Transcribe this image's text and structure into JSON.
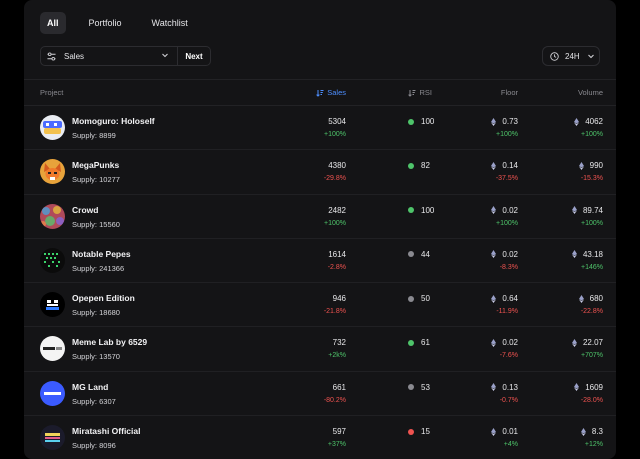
{
  "tabs": [
    {
      "label": "All",
      "active": true
    },
    {
      "label": "Portfolio",
      "active": false
    },
    {
      "label": "Watchlist",
      "active": false
    }
  ],
  "controls": {
    "sort_label": "Sales",
    "next_label": "Next",
    "time_label": "24H"
  },
  "columns": {
    "project": "Project",
    "sales": "Sales",
    "rsi": "RSI",
    "floor": "Floor",
    "volume": "Volume"
  },
  "supply_prefix": "Supply:",
  "colors": {
    "accent": "#4d8eff",
    "positive": "#4ec46a",
    "negative": "#ef5350",
    "rsi_green": "#4ec46a",
    "rsi_gray": "#8a8a90",
    "rsi_red": "#ef5350"
  },
  "rows": [
    {
      "name": "Momoguro: Holoself",
      "supply": "8899",
      "sales": "5304",
      "sales_change": "+100%",
      "rsi": "100",
      "rsi_status": "green",
      "floor": "0.73",
      "floor_change": "+100%",
      "volume": "4062",
      "volume_change": "+100%",
      "avatar_icon": "momoguro-logo-icon"
    },
    {
      "name": "MegaPunks",
      "supply": "10277",
      "sales": "4380",
      "sales_change": "-29.8%",
      "rsi": "82",
      "rsi_status": "green",
      "floor": "0.14",
      "floor_change": "-37.5%",
      "volume": "990",
      "volume_change": "-15.3%",
      "avatar_icon": "megapunks-fox-icon"
    },
    {
      "name": "Crowd",
      "supply": "15560",
      "sales": "2482",
      "sales_change": "+100%",
      "rsi": "100",
      "rsi_status": "green",
      "floor": "0.02",
      "floor_change": "+100%",
      "volume": "89.74",
      "volume_change": "+100%",
      "avatar_icon": "crowd-pattern-icon"
    },
    {
      "name": "Notable Pepes",
      "supply": "241366",
      "sales": "1614",
      "sales_change": "-2.8%",
      "rsi": "44",
      "rsi_status": "gray",
      "floor": "0.02",
      "floor_change": "-8.3%",
      "volume": "43.18",
      "volume_change": "+146%",
      "avatar_icon": "notable-pepes-icon"
    },
    {
      "name": "Opepen Edition",
      "supply": "18680",
      "sales": "946",
      "sales_change": "-21.8%",
      "rsi": "50",
      "rsi_status": "gray",
      "floor": "0.64",
      "floor_change": "-11.9%",
      "volume": "680",
      "volume_change": "-22.8%",
      "avatar_icon": "opepen-icon"
    },
    {
      "name": "Meme Lab by 6529",
      "supply": "13570",
      "sales": "732",
      "sales_change": "+2k%",
      "rsi": "61",
      "rsi_status": "green",
      "floor": "0.02",
      "floor_change": "-7.6%",
      "volume": "22.07",
      "volume_change": "+707%",
      "avatar_icon": "meme-lab-icon"
    },
    {
      "name": "MG Land",
      "supply": "6307",
      "sales": "661",
      "sales_change": "-80.2%",
      "rsi": "53",
      "rsi_status": "gray",
      "floor": "0.13",
      "floor_change": "-0.7%",
      "volume": "1609",
      "volume_change": "-28.0%",
      "avatar_icon": "mg-land-icon"
    },
    {
      "name": "Miratashi Official",
      "supply": "8096",
      "sales": "597",
      "sales_change": "+37%",
      "rsi": "15",
      "rsi_status": "red",
      "floor": "0.01",
      "floor_change": "+4%",
      "volume": "8.3",
      "volume_change": "+12%",
      "avatar_icon": "miratashi-icon"
    }
  ]
}
